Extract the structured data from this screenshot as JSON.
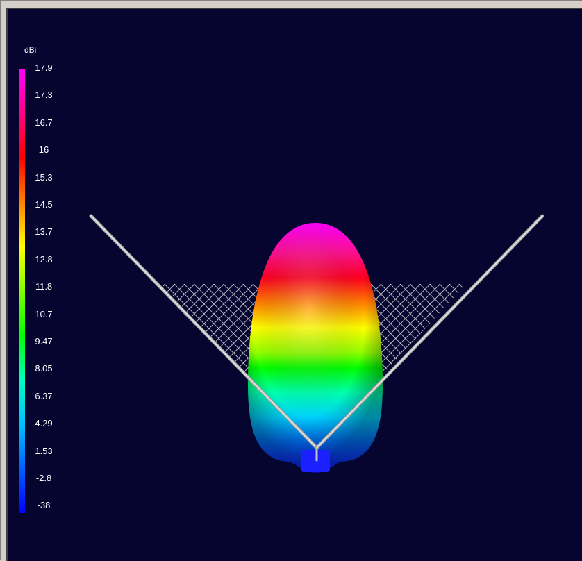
{
  "window": {
    "title": ""
  },
  "legend": {
    "unit": "dBi",
    "ticks": [
      "17.9",
      "17.3",
      "16.7",
      "16",
      "15.3",
      "14.5",
      "13.7",
      "12.8",
      "11.8",
      "10.7",
      "9.47",
      "8.05",
      "6.37",
      "4.29",
      "1.53",
      "-2.8",
      "-38"
    ],
    "colors": [
      "#ff00ff",
      "#ff0088",
      "#ff0000",
      "#ff8000",
      "#ffff00",
      "#80ff00",
      "#00ff00",
      "#00ffc0",
      "#00c0ff",
      "#0060ff",
      "#0000ff"
    ]
  },
  "scene": {
    "background": "#050530",
    "reflector_color": "#c8c8c8",
    "mesh_color": "#ffffff",
    "pattern_description_icon": "radiation-pattern-3d"
  }
}
